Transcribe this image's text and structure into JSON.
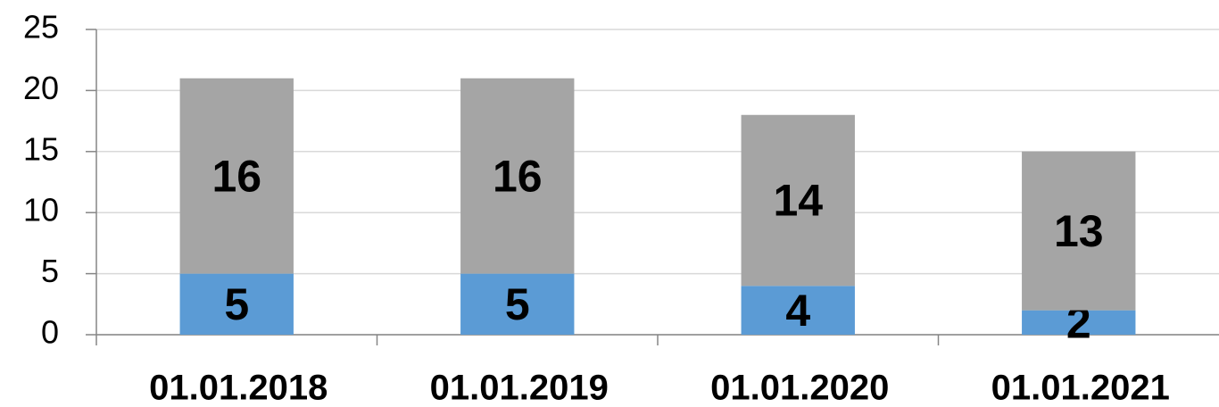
{
  "chart_data": {
    "type": "stacked_bar",
    "categories": [
      "01.01.2018",
      "01.01.2019",
      "01.01.2020",
      "01.01.2021"
    ],
    "series": [
      {
        "color": "#5b9bd5",
        "values": [
          5,
          5,
          4,
          2
        ]
      },
      {
        "color": "#a5a5a5",
        "values": [
          16,
          16,
          14,
          13
        ]
      }
    ],
    "ylim": [
      0,
      25
    ],
    "yticks": [
      0,
      5,
      10,
      15,
      20,
      25
    ],
    "grid": true
  }
}
